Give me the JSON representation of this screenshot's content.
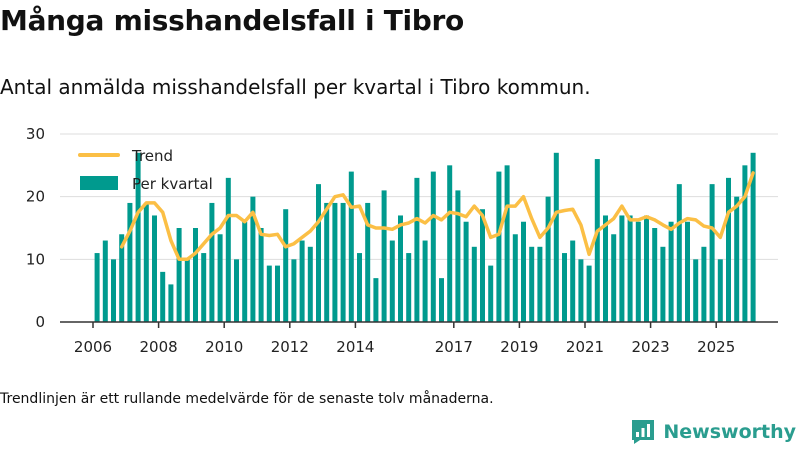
{
  "colors": {
    "bar": "#009a8e",
    "trend": "#fbbf45",
    "grid": "#dddddd",
    "axis": "#333333",
    "brand": "#2a9d8f"
  },
  "header": {
    "title": "Många misshandelsfall i Tibro",
    "subtitle": "Antal anmälda misshandelsfall per kvartal i Tibro kommun."
  },
  "footer": {
    "note": "Trendlinjen är ett rullande medelvärde för de senaste tolv månaderna.",
    "brand": "Newsworthy",
    "brand_icon": "newsworthy-logo-icon"
  },
  "chart_data": {
    "type": "bar",
    "title": "Många misshandelsfall i Tibro",
    "xlabel": "",
    "ylabel": "",
    "ylim": [
      0,
      30
    ],
    "yticks": [
      0,
      10,
      20,
      30
    ],
    "grid": true,
    "legend_position": "top-left",
    "start": 2006,
    "x_ticks": [
      {
        "label": "2006",
        "value": 2006
      },
      {
        "label": "2008",
        "value": 2008
      },
      {
        "label": "2010",
        "value": 2010
      },
      {
        "label": "2012",
        "value": 2012
      },
      {
        "label": "2014",
        "value": 2014
      },
      {
        "label": "2017",
        "value": 2017
      },
      {
        "label": "2019",
        "value": 2019
      },
      {
        "label": "2021",
        "value": 2021
      },
      {
        "label": "2023",
        "value": 2023
      },
      {
        "label": "2025",
        "value": 2025
      }
    ],
    "series": [
      {
        "name": "Per kvartal",
        "type": "bar",
        "values": [
          11,
          13,
          10,
          14,
          19,
          27,
          19,
          17,
          8,
          6,
          15,
          10,
          15,
          11,
          19,
          14,
          23,
          10,
          16,
          20,
          15,
          9,
          9,
          18,
          10,
          13,
          12,
          22,
          19,
          19,
          19,
          24,
          11,
          19,
          7,
          21,
          13,
          17,
          11,
          23,
          13,
          24,
          7,
          25,
          21,
          16,
          12,
          18,
          9,
          24,
          25,
          14,
          16,
          12,
          12,
          20,
          27,
          11,
          13,
          10,
          9,
          26,
          17,
          14,
          17,
          17,
          16,
          17,
          15,
          12,
          16,
          22,
          16,
          10,
          12,
          22,
          10,
          23,
          20,
          25,
          27
        ]
      },
      {
        "name": "Trend",
        "type": "line",
        "values": [
          null,
          null,
          null,
          12,
          14.5,
          17.5,
          19,
          19,
          17.5,
          13,
          10,
          10,
          11,
          12.5,
          14,
          15,
          17,
          17,
          16,
          17.5,
          14,
          13.8,
          14,
          12,
          12.5,
          13.5,
          14.5,
          16,
          18,
          20,
          20.3,
          18.3,
          18.5,
          15.5,
          15,
          15,
          14.8,
          15.5,
          15.8,
          16.5,
          15.8,
          17,
          16.3,
          17.5,
          17.3,
          16.8,
          18.5,
          17,
          13.5,
          14,
          18.5,
          18.5,
          20,
          16.5,
          13.5,
          15,
          17.5,
          17.8,
          18,
          15.5,
          10.8,
          14.5,
          15.5,
          16.5,
          18.5,
          16.3,
          16.3,
          16.8,
          16.3,
          15.5,
          14.8,
          15.8,
          16.5,
          16.3,
          15.3,
          15,
          13.5,
          17.5,
          18.5,
          20,
          23.8
        ]
      }
    ]
  }
}
